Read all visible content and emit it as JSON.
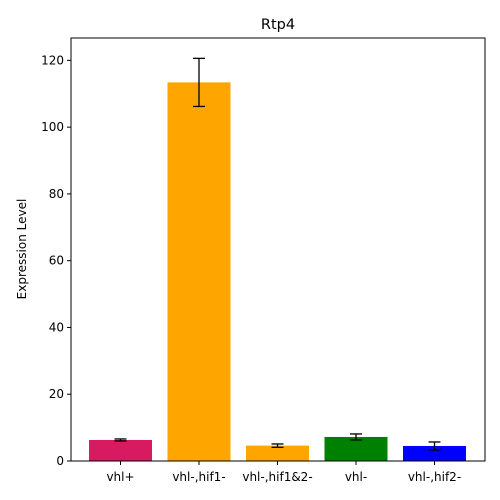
{
  "chart_data": {
    "type": "bar",
    "title": "Rtp4",
    "xlabel": "",
    "ylabel": "Expression Level",
    "categories": [
      "vhl+",
      "vhl-,hif1-",
      "vhl-,hif1&2-",
      "vhl-",
      "vhl-,hif2-"
    ],
    "values": [
      6.3,
      113.4,
      4.6,
      7.2,
      4.5
    ],
    "errors": [
      0.3,
      7.2,
      0.5,
      0.9,
      1.2
    ],
    "colors": [
      "#d81b60",
      "#ffa500",
      "#ffa500",
      "#008000",
      "#0000ff"
    ],
    "ylim": [
      0,
      126.7
    ],
    "yticks": [
      0,
      20,
      40,
      60,
      80,
      100,
      120
    ],
    "grid": false,
    "legend": "none"
  }
}
